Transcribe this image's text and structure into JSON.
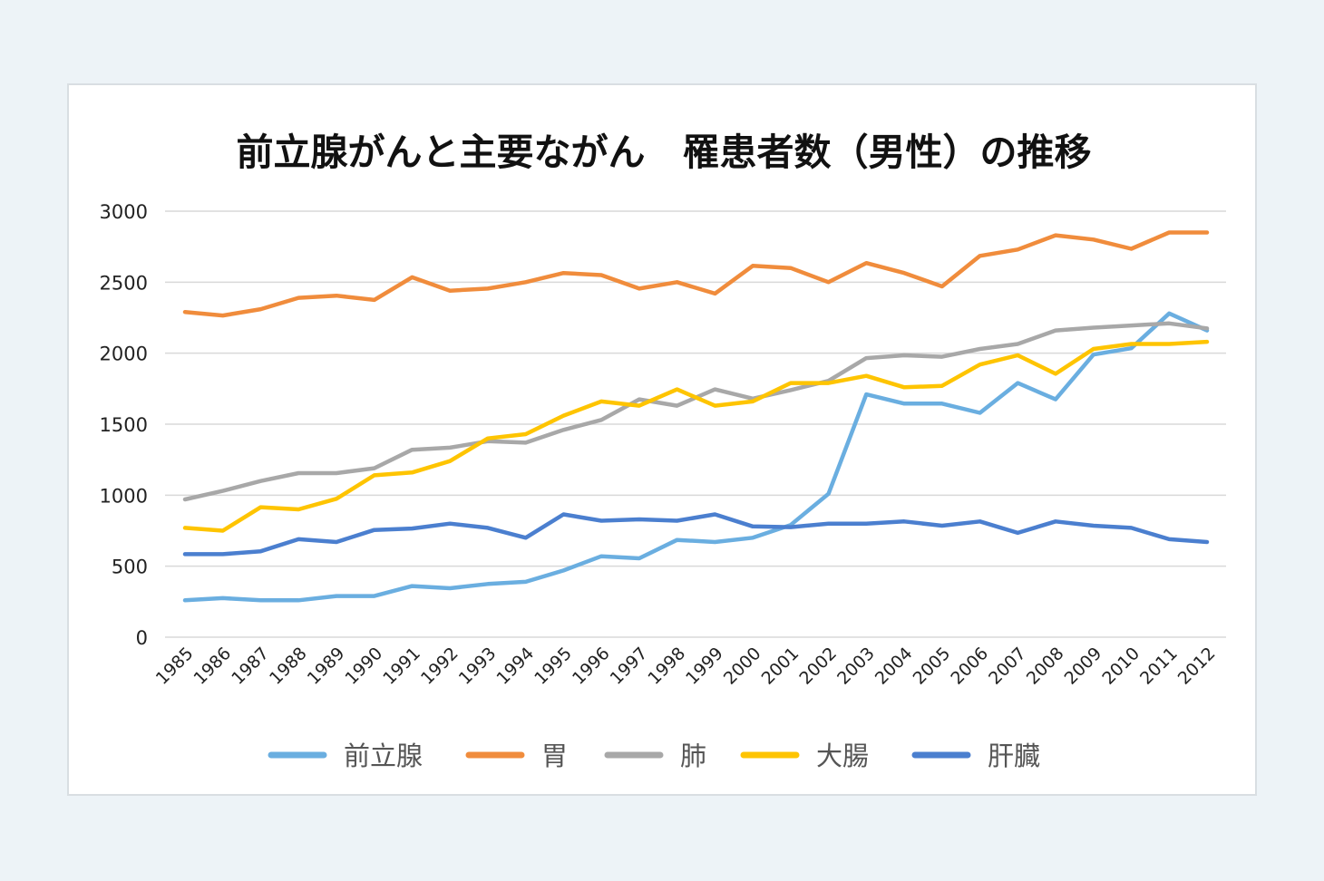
{
  "chart_data": {
    "type": "line",
    "title": "前立腺がんと主要ながん　罹患者数（男性）の推移",
    "xlabel": "",
    "ylabel": "",
    "ylim": [
      0,
      3000
    ],
    "yticks": [
      "0",
      "500",
      "1000",
      "1500",
      "2000",
      "2500",
      "3000"
    ],
    "grid": true,
    "legend_position": "bottom",
    "categories": [
      "1985",
      "1986",
      "1987",
      "1988",
      "1989",
      "1990",
      "1991",
      "1992",
      "1993",
      "1994",
      "1995",
      "1996",
      "1997",
      "1998",
      "1999",
      "2000",
      "2001",
      "2002",
      "2003",
      "2004",
      "2005",
      "2006",
      "2007",
      "2008",
      "2009",
      "2010",
      "2011",
      "2012"
    ],
    "series": [
      {
        "name": "前立腺",
        "color": "#6aaee0",
        "values": [
          260,
          275,
          260,
          260,
          290,
          290,
          360,
          345,
          375,
          390,
          470,
          570,
          555,
          685,
          670,
          700,
          790,
          1010,
          1710,
          1645,
          1645,
          1580,
          1790,
          1675,
          1990,
          2035,
          2280,
          2160
        ]
      },
      {
        "name": "胃",
        "color": "#f08c3c",
        "values": [
          2290,
          2265,
          2310,
          2390,
          2405,
          2375,
          2535,
          2440,
          2455,
          2500,
          2565,
          2550,
          2455,
          2500,
          2420,
          2615,
          2600,
          2500,
          2635,
          2565,
          2470,
          2685,
          2730,
          2830,
          2800,
          2735,
          2850,
          2850
        ]
      },
      {
        "name": "肺",
        "color": "#a8a8a8",
        "values": [
          970,
          1030,
          1100,
          1155,
          1155,
          1190,
          1320,
          1335,
          1380,
          1370,
          1460,
          1530,
          1675,
          1630,
          1745,
          1680,
          1740,
          1805,
          1965,
          1985,
          1975,
          2030,
          2065,
          2160,
          2180,
          2195,
          2210,
          2175
        ]
      },
      {
        "name": "大腸",
        "color": "#fec400",
        "values": [
          770,
          750,
          915,
          900,
          975,
          1140,
          1160,
          1240,
          1400,
          1430,
          1560,
          1660,
          1630,
          1745,
          1630,
          1660,
          1790,
          1790,
          1840,
          1760,
          1770,
          1920,
          1985,
          1855,
          2030,
          2065,
          2065,
          2080
        ]
      },
      {
        "name": "肝臓",
        "color": "#4b7fcf",
        "values": [
          585,
          585,
          605,
          690,
          670,
          755,
          765,
          800,
          770,
          700,
          865,
          820,
          830,
          820,
          865,
          780,
          775,
          800,
          800,
          815,
          785,
          815,
          735,
          815,
          785,
          770,
          690,
          670
        ]
      }
    ]
  }
}
